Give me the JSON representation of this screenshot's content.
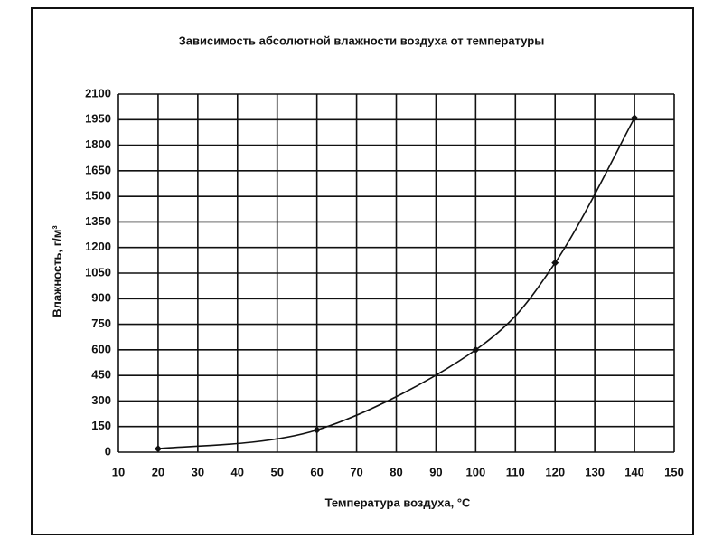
{
  "chart_data": {
    "type": "line",
    "title": "Зависимость абсолютной влажности воздуха от температуры",
    "x_label": "Температура воздуха, °C",
    "y_label": "Влажность, г/м³",
    "x": [
      20,
      60,
      100,
      120,
      140
    ],
    "values": [
      20,
      130,
      600,
      1110,
      1960
    ],
    "color": "#111111",
    "xlim": [
      10,
      150
    ],
    "xticks": [
      10,
      20,
      30,
      40,
      50,
      60,
      70,
      80,
      90,
      100,
      110,
      120,
      130,
      140,
      150
    ],
    "ylim": [
      0,
      2100
    ],
    "yticks": [
      0,
      150,
      300,
      450,
      600,
      750,
      900,
      1050,
      1200,
      1350,
      1500,
      1650,
      1800,
      1950,
      2100
    ],
    "grid": true
  }
}
